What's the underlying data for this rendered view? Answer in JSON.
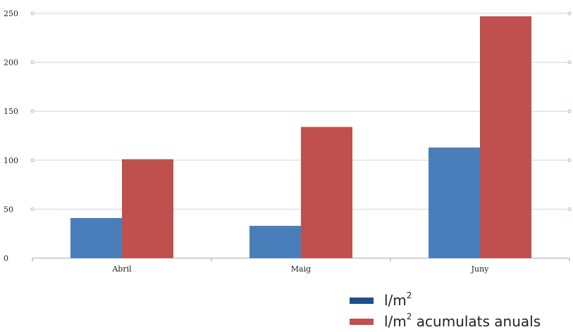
{
  "chart_data": {
    "type": "bar",
    "categories": [
      "Abril",
      "Maig",
      "Juny"
    ],
    "series": [
      {
        "name": "l/m²",
        "values": [
          41,
          33,
          113
        ],
        "color": "#4a7ebb",
        "legend_color": "#1f4e8c"
      },
      {
        "name": "l/m² acumulats anuals",
        "values": [
          101,
          134,
          247
        ],
        "color": "#c0504d",
        "legend_color": "#c0504d"
      }
    ],
    "y_ticks": [
      "0",
      "50",
      "100",
      "150",
      "200",
      "250"
    ],
    "ylim": [
      0,
      250
    ],
    "grid": true,
    "legend_position": "bottom-right",
    "title": "",
    "xlabel": "",
    "ylabel": ""
  },
  "legend": {
    "items": [
      {
        "base": "l/m",
        "sup": "2",
        "rest": ""
      },
      {
        "base": "l/m",
        "sup": "2",
        "rest": " acumulats anuals"
      }
    ]
  }
}
